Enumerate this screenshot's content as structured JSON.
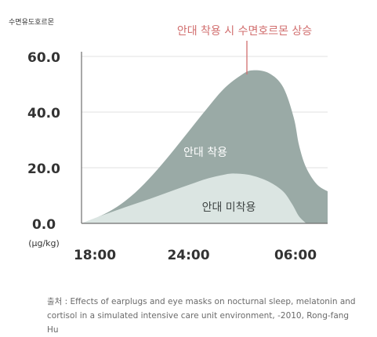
{
  "chart_data": {
    "type": "area",
    "ylabel": "수면유도호르몬",
    "unit": "(μg/kg)",
    "ylim": [
      0,
      60
    ],
    "yticks": [
      "0.0",
      "20.0",
      "40.0",
      "60.0"
    ],
    "ytick_values": [
      0,
      20,
      40,
      60
    ],
    "x_ticks": [
      "18:00",
      "24:00",
      "06:00"
    ],
    "x_tick_values": [
      0,
      6,
      12
    ],
    "xlim": [
      0,
      13.8
    ],
    "grid": true,
    "annotation": "안대 착용 시 수면호르몬 상승",
    "series": [
      {
        "name": "안대 착용",
        "color": "#9aaaa6",
        "points": [
          [
            0,
            0
          ],
          [
            1,
            2.5
          ],
          [
            2,
            6
          ],
          [
            3,
            11
          ],
          [
            4,
            17.5
          ],
          [
            5,
            25
          ],
          [
            6,
            33
          ],
          [
            7,
            41
          ],
          [
            8,
            48.5
          ],
          [
            9,
            53.5
          ],
          [
            9.6,
            55
          ],
          [
            10.5,
            54
          ],
          [
            11.3,
            49
          ],
          [
            11.9,
            38
          ],
          [
            12.2,
            28
          ],
          [
            12.6,
            20
          ],
          [
            13.2,
            14
          ],
          [
            13.8,
            11.5
          ]
        ]
      },
      {
        "name": "안대 미착용",
        "color": "#dbe5e2",
        "points": [
          [
            0,
            0
          ],
          [
            1,
            2.5
          ],
          [
            2,
            4.8
          ],
          [
            3,
            7
          ],
          [
            4,
            9.2
          ],
          [
            5,
            11.5
          ],
          [
            6,
            13.8
          ],
          [
            7,
            16
          ],
          [
            8,
            17.5
          ],
          [
            8.6,
            17.9
          ],
          [
            9.5,
            17.3
          ],
          [
            10.5,
            15
          ],
          [
            11.3,
            11.5
          ],
          [
            11.8,
            7
          ],
          [
            12.2,
            2.5
          ],
          [
            12.6,
            0
          ]
        ]
      }
    ]
  },
  "caption": {
    "line1": "출처 : Effects of earplugs and eye masks on nocturnal sleep, melatonin and",
    "line2": "cortisol in a simulated intensive care unit environment, -2010, Rong-fang Hu"
  }
}
